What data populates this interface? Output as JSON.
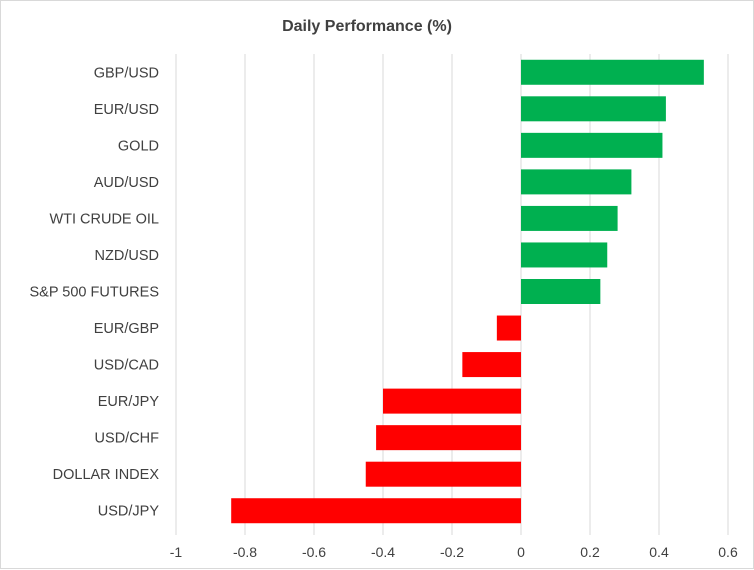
{
  "chart_data": {
    "type": "bar",
    "orientation": "horizontal",
    "title": "Daily Performance (%)",
    "xlabel": "",
    "ylabel": "",
    "xlim": [
      -1,
      0.6
    ],
    "grid": true,
    "legend": "none",
    "categories": [
      "GBP/USD",
      "EUR/USD",
      "GOLD",
      "AUD/USD",
      "WTI CRUDE OIL",
      "NZD/USD",
      "S&P 500 FUTURES",
      "EUR/GBP",
      "USD/CAD",
      "EUR/JPY",
      "USD/CHF",
      "DOLLAR INDEX",
      "USD/JPY"
    ],
    "values": [
      0.53,
      0.42,
      0.41,
      0.32,
      0.28,
      0.25,
      0.23,
      -0.07,
      -0.17,
      -0.4,
      -0.42,
      -0.45,
      -0.84
    ],
    "xticks": [
      -1,
      -0.8,
      -0.6,
      -0.4,
      -0.2,
      0,
      0.2,
      0.4,
      0.6
    ],
    "xtick_labels": [
      "-1",
      "-0.8",
      "-0.6",
      "-0.4",
      "-0.2",
      "0",
      "0.2",
      "0.4",
      "0.6"
    ],
    "colors": {
      "positive": "#00b050",
      "negative": "#ff0000",
      "grid": "#d9d9d9",
      "text": "#404040"
    }
  }
}
